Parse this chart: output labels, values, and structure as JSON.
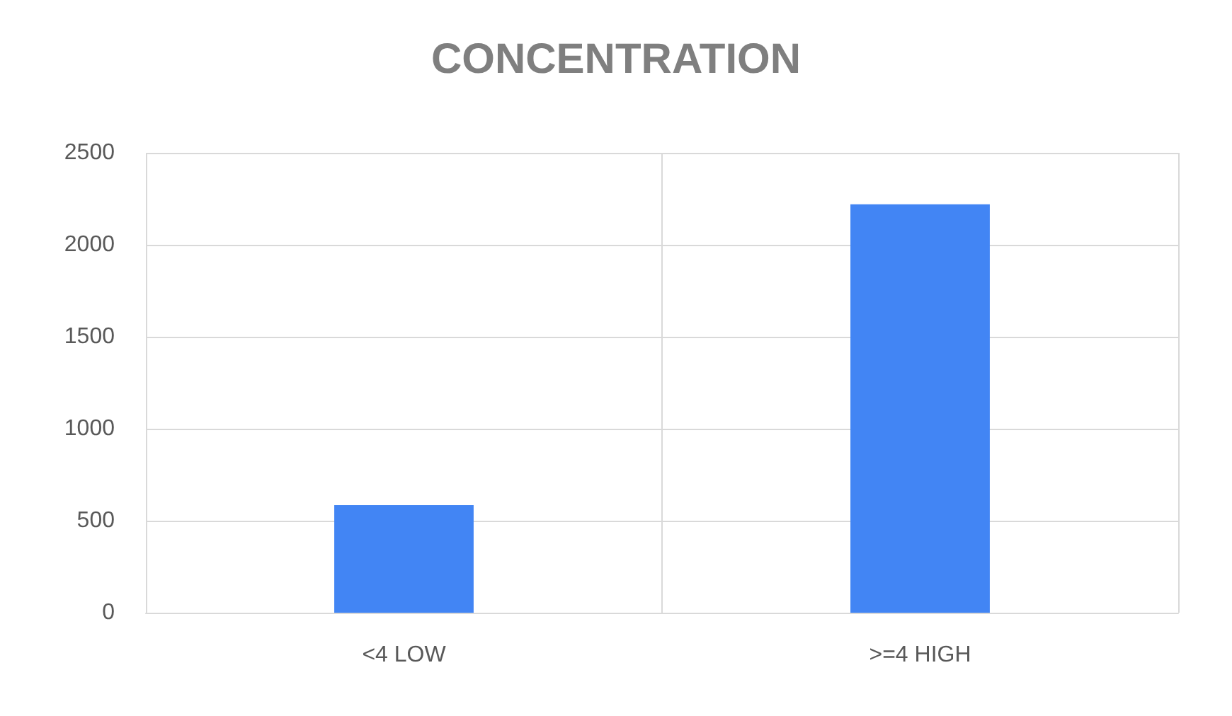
{
  "chart_data": {
    "type": "bar",
    "title": "CONCENTRATION",
    "categories": [
      "<4 LOW",
      ">=4 HIGH"
    ],
    "values": [
      585,
      2220
    ],
    "color": "#4285f4",
    "ylim": [
      0,
      2500
    ],
    "yticks": [
      0,
      500,
      1000,
      1500,
      2000,
      2500
    ],
    "grid": true
  }
}
